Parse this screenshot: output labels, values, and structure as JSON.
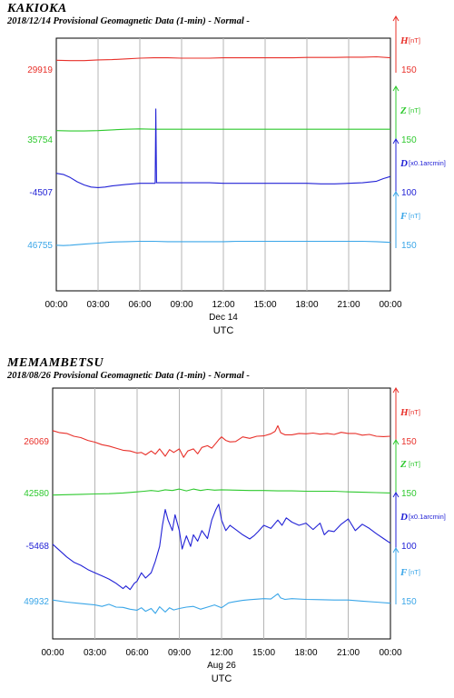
{
  "chart_data": [
    {
      "type": "line",
      "station": "KAKIOKA",
      "title": "2018/12/14  Provisional Geomagnetic Data (1-min)  - Normal -",
      "xlabel": "UTC",
      "date_label": "Dec 14",
      "xticks": [
        "00:00",
        "03:00",
        "06:00",
        "09:00",
        "12:00",
        "15:00",
        "18:00",
        "21:00",
        "00:00"
      ],
      "grid": true,
      "series": [
        {
          "name": "H",
          "unit": "[nT]",
          "base_label": "29919",
          "scale_label": "150",
          "color": "#e8302a",
          "x": [
            0,
            1,
            2,
            3,
            4,
            5,
            6,
            7,
            7.2,
            7.25,
            7.4,
            8,
            9,
            10,
            11,
            12,
            13,
            14,
            15,
            16,
            17,
            18,
            19,
            20,
            21,
            22,
            23,
            24
          ],
          "y": [
            29944,
            29943,
            29943,
            29945,
            29946,
            29948,
            29950,
            29951,
            29951,
            29951,
            29951,
            29951,
            29950,
            29950,
            29950,
            29951,
            29951,
            29951,
            29951,
            29951,
            29951,
            29952,
            29952,
            29952,
            29953,
            29953,
            29954,
            29951
          ]
        },
        {
          "name": "Z",
          "unit": "[nT]",
          "base_label": "35754",
          "scale_label": "150",
          "color": "#2ec92e",
          "x": [
            0,
            1,
            2,
            3,
            4,
            5,
            6,
            7,
            8,
            9,
            10,
            11,
            12,
            13,
            14,
            15,
            16,
            17,
            18,
            19,
            20,
            21,
            22,
            23,
            24
          ],
          "y": [
            35778,
            35777,
            35777,
            35778,
            35780,
            35782,
            35783,
            35782,
            35782,
            35782,
            35782,
            35782,
            35782,
            35782,
            35782,
            35782,
            35782,
            35782,
            35782,
            35782,
            35782,
            35782,
            35782,
            35782,
            35782
          ]
        },
        {
          "name": "D",
          "unit": "[x0.1arcmin]",
          "base_label": "-4507",
          "scale_label": "100",
          "color": "#2222d6",
          "x": [
            0,
            0.5,
            1,
            1.5,
            2,
            2.5,
            3,
            3.5,
            4,
            5,
            6,
            6.5,
            7,
            7.1,
            7.15,
            7.2,
            7.3,
            7.5,
            8,
            9,
            10,
            11,
            12,
            13,
            14,
            15,
            16,
            17,
            18,
            19,
            20,
            21,
            22,
            23,
            23.5,
            24
          ],
          "y": [
            -4472,
            -4474,
            -4480,
            -4488,
            -4494,
            -4498,
            -4499,
            -4498,
            -4496,
            -4493,
            -4491,
            -4491,
            -4491,
            -4491,
            -4350,
            -4490,
            -4490,
            -4490,
            -4490,
            -4490,
            -4490,
            -4490,
            -4491,
            -4491,
            -4491,
            -4491,
            -4491,
            -4491,
            -4491,
            -4492,
            -4492,
            -4491,
            -4490,
            -4487,
            -4482,
            -4478
          ]
        },
        {
          "name": "F",
          "unit": "[nT]",
          "base_label": "46755",
          "scale_label": "150",
          "color": "#3aa6e8",
          "x": [
            0,
            0.5,
            1,
            2,
            3,
            4,
            5,
            6,
            7,
            8,
            9,
            10,
            11,
            12,
            13,
            14,
            15,
            16,
            17,
            18,
            19,
            20,
            21,
            22,
            23,
            24
          ],
          "y": [
            46753,
            46752,
            46753,
            46756,
            46759,
            46762,
            46763,
            46764,
            46764,
            46763,
            46763,
            46763,
            46763,
            46763,
            46764,
            46764,
            46764,
            46764,
            46764,
            46764,
            46764,
            46764,
            46764,
            46764,
            46763,
            46761
          ]
        }
      ]
    },
    {
      "type": "line",
      "station": "MEMAMBETSU",
      "title": "2018/08/26  Provisional Geomagnetic Data (1-min)  - Normal -",
      "xlabel": "UTC",
      "date_label": "Aug 26",
      "xticks": [
        "00:00",
        "03:00",
        "06:00",
        "09:00",
        "12:00",
        "15:00",
        "18:00",
        "21:00",
        "00:00"
      ],
      "grid": true,
      "series": [
        {
          "name": "H",
          "unit": "[nT]",
          "base_label": "26069",
          "scale_label": "150",
          "color": "#e8302a",
          "x": [
            0,
            0.5,
            1,
            1.5,
            2,
            2.5,
            3,
            3.5,
            4,
            4.5,
            5,
            5.5,
            6,
            6.3,
            6.6,
            7,
            7.3,
            7.6,
            8,
            8.3,
            8.6,
            9,
            9.3,
            9.6,
            10,
            10.3,
            10.6,
            11,
            11.3,
            11.6,
            11.8,
            12,
            12.3,
            12.6,
            13,
            13.5,
            14,
            14.5,
            15,
            15.5,
            15.8,
            16,
            16.2,
            16.5,
            17,
            17.5,
            18,
            18.5,
            19,
            19.5,
            20,
            20.5,
            21,
            21.5,
            22,
            22.5,
            23,
            23.5,
            24
          ],
          "y": [
            26098,
            26092,
            26090,
            26082,
            26078,
            26070,
            26065,
            26058,
            26054,
            26048,
            26042,
            26040,
            26034,
            26036,
            26029,
            26040,
            26031,
            26046,
            26025,
            26044,
            26036,
            26046,
            26022,
            26040,
            26046,
            26032,
            26050,
            26055,
            26048,
            26062,
            26072,
            26080,
            26070,
            26066,
            26067,
            26080,
            26076,
            26082,
            26083,
            26089,
            26096,
            26112,
            26092,
            26086,
            26086,
            26090,
            26089,
            26091,
            26088,
            26090,
            26087,
            26093,
            26090,
            26090,
            26085,
            26087,
            26082,
            26081,
            26082
          ]
        },
        {
          "name": "Z",
          "unit": "[nT]",
          "base_label": "42580",
          "scale_label": "150",
          "color": "#2ec92e",
          "x": [
            0,
            1,
            2,
            3,
            4,
            5,
            6,
            6.5,
            7,
            7.5,
            8,
            8.5,
            9,
            9.5,
            10,
            10.5,
            11,
            11.5,
            12,
            13,
            14,
            15,
            16,
            17,
            18,
            19,
            20,
            21,
            22,
            23,
            24
          ],
          "y": [
            42573,
            42574,
            42575,
            42576,
            42577,
            42579,
            42582,
            42584,
            42586,
            42584,
            42588,
            42586,
            42590,
            42585,
            42590,
            42586,
            42589,
            42587,
            42588,
            42587,
            42586,
            42586,
            42585,
            42585,
            42584,
            42584,
            42584,
            42582,
            42581,
            42580,
            42579
          ]
        },
        {
          "name": "D",
          "unit": "[x0.1arcmin]",
          "base_label": "-5468",
          "scale_label": "100",
          "color": "#2222d6",
          "x": [
            0,
            0.5,
            1,
            1.5,
            2,
            2.5,
            3,
            3.5,
            4,
            4.5,
            5,
            5.2,
            5.5,
            5.8,
            6,
            6.3,
            6.6,
            7,
            7.3,
            7.6,
            7.8,
            8,
            8.2,
            8.5,
            8.7,
            9,
            9.2,
            9.5,
            9.8,
            10,
            10.3,
            10.6,
            11,
            11.3,
            11.6,
            11.8,
            12,
            12.3,
            12.6,
            13,
            13.5,
            14,
            14.3,
            14.6,
            15,
            15.5,
            16,
            16.3,
            16.6,
            17,
            17.5,
            18,
            18.5,
            19,
            19.3,
            19.6,
            20,
            20.5,
            21,
            21.5,
            22,
            22.5,
            23,
            23.5,
            24
          ],
          "y": [
            -5466,
            -5478,
            -5490,
            -5500,
            -5506,
            -5514,
            -5520,
            -5526,
            -5532,
            -5540,
            -5550,
            -5545,
            -5552,
            -5540,
            -5536,
            -5520,
            -5530,
            -5520,
            -5498,
            -5470,
            -5430,
            -5400,
            -5420,
            -5440,
            -5410,
            -5440,
            -5475,
            -5450,
            -5470,
            -5448,
            -5460,
            -5440,
            -5455,
            -5420,
            -5400,
            -5390,
            -5420,
            -5440,
            -5430,
            -5438,
            -5448,
            -5456,
            -5450,
            -5442,
            -5430,
            -5436,
            -5420,
            -5430,
            -5416,
            -5424,
            -5430,
            -5426,
            -5438,
            -5426,
            -5448,
            -5440,
            -5442,
            -5428,
            -5418,
            -5440,
            -5428,
            -5436,
            -5446,
            -5455,
            -5464
          ]
        },
        {
          "name": "F",
          "unit": "[nT]",
          "base_label": "49932",
          "scale_label": "150",
          "color": "#3aa6e8",
          "x": [
            0,
            1,
            2,
            3,
            3.5,
            4,
            4.5,
            5,
            5.5,
            6,
            6.3,
            6.6,
            7,
            7.3,
            7.6,
            8,
            8.3,
            8.6,
            9,
            9.5,
            10,
            10.5,
            11,
            11.5,
            12,
            12.5,
            13,
            13.5,
            14,
            15,
            15.5,
            16,
            16.2,
            16.5,
            17,
            18,
            19,
            20,
            21,
            22,
            23,
            24
          ],
          "y": [
            49934,
            49928,
            49924,
            49920,
            49916,
            49922,
            49914,
            49913,
            49908,
            49905,
            49912,
            49902,
            49910,
            49896,
            49915,
            49900,
            49912,
            49906,
            49910,
            49914,
            49916,
            49908,
            49914,
            49920,
            49912,
            49926,
            49930,
            49933,
            49935,
            49938,
            49937,
            49952,
            49940,
            49936,
            49938,
            49936,
            49935,
            49934,
            49934,
            49931,
            49928,
            49925
          ]
        }
      ]
    }
  ]
}
